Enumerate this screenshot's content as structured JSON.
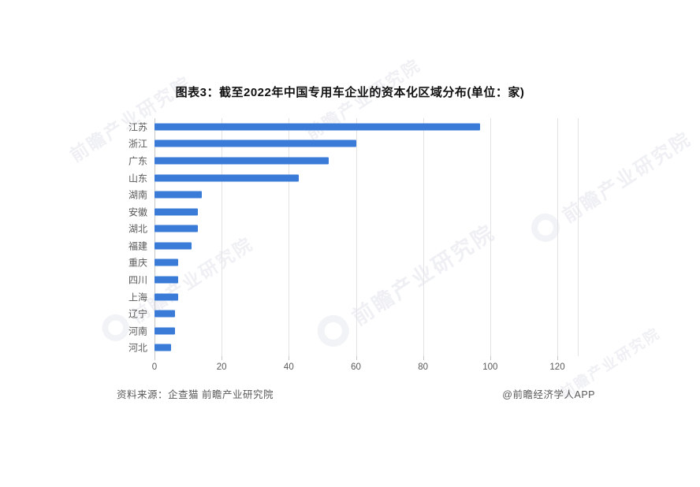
{
  "title": "图表3：截至2022年中国专用车企业的资本化区域分布(单位：家)",
  "source_note": "资料来源：企查猫 前瞻产业研究院",
  "credit": "@前瞻经济学人APP",
  "watermark": "前瞻产业研究院",
  "colors": {
    "bar": "#3b7bd8",
    "grid": "#e3e3e5",
    "axis": "#c6c6c8",
    "label": "#595959",
    "title": "#111111",
    "watermark": "#afb5c6"
  },
  "chart_data": {
    "type": "bar",
    "orientation": "horizontal",
    "title": "图表3：截至2022年中国专用车企业的资本化区域分布(单位：家)",
    "categories": [
      "江苏",
      "浙江",
      "广东",
      "山东",
      "湖南",
      "安徽",
      "湖北",
      "福建",
      "重庆",
      "四川",
      "上海",
      "辽宁",
      "河南",
      "河北"
    ],
    "values": [
      97,
      60,
      52,
      43,
      14,
      13,
      13,
      11,
      7,
      7,
      7,
      6,
      6,
      5
    ],
    "xlabel": "",
    "ylabel": "",
    "xlim": [
      0,
      120
    ],
    "xticks": [
      0,
      20,
      40,
      60,
      80,
      100,
      120
    ],
    "grid": true,
    "legend": false,
    "unit": "家"
  }
}
